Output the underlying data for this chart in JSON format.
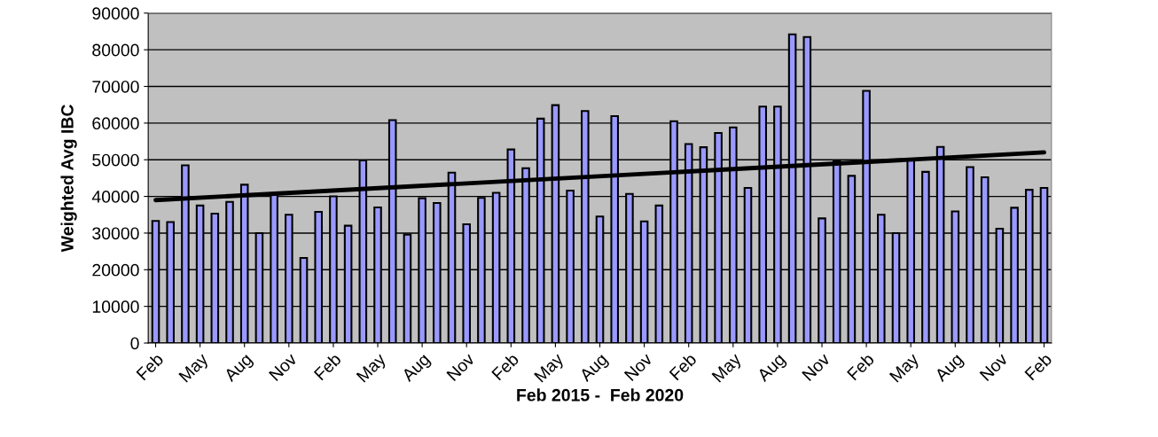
{
  "chart_data": {
    "type": "bar",
    "xlabel": "Feb 2015 -  Feb 2020",
    "ylabel": "Weighted Avg IBC",
    "categories": [
      "Feb",
      null,
      null,
      "May",
      null,
      null,
      "Aug",
      null,
      null,
      "Nov",
      null,
      null,
      "Feb",
      null,
      null,
      "May",
      null,
      null,
      "Aug",
      null,
      null,
      "Nov",
      null,
      null,
      "Feb",
      null,
      null,
      "May",
      null,
      null,
      "Aug",
      null,
      null,
      "Nov",
      null,
      null,
      "Feb",
      null,
      null,
      "May",
      null,
      null,
      "Aug",
      null,
      null,
      "Nov",
      null,
      null,
      "Feb",
      null,
      null,
      "May",
      null,
      null,
      "Aug",
      null,
      null,
      "Nov",
      null,
      null,
      "Feb"
    ],
    "series": [
      {
        "color": "#9999ff",
        "values": [
          33300,
          33000,
          48500,
          37500,
          35300,
          38500,
          43200,
          30000,
          40500,
          35000,
          23200,
          35800,
          40000,
          32000,
          49800,
          37000,
          60800,
          29600,
          39500,
          38200,
          46500,
          32400,
          39600,
          41000,
          52800,
          47700,
          61200,
          64900,
          41600,
          63300,
          34500,
          61900,
          40700,
          33200,
          37500,
          60500,
          54300,
          53400,
          57300,
          58800,
          42300,
          64500,
          64500,
          84200,
          83500,
          34000,
          49600,
          45600,
          68800,
          35000,
          30000,
          49800,
          46700,
          53500,
          35900,
          48000,
          45200,
          31200,
          36900,
          41800,
          42300
        ]
      },
      {
        "type": "line",
        "color": "#000000",
        "values": [
          39000,
          null,
          null,
          null,
          null,
          null,
          null,
          null,
          null,
          null,
          null,
          null,
          null,
          null,
          null,
          null,
          null,
          null,
          null,
          null,
          null,
          null,
          null,
          null,
          null,
          null,
          null,
          null,
          null,
          null,
          null,
          null,
          null,
          null,
          null,
          null,
          null,
          null,
          null,
          null,
          null,
          null,
          null,
          null,
          null,
          null,
          null,
          null,
          null,
          null,
          null,
          null,
          null,
          null,
          null,
          null,
          null,
          null,
          null,
          null,
          52000
        ]
      }
    ],
    "ylim": [
      0,
      90000
    ],
    "yticks": [
      0,
      10000,
      20000,
      30000,
      40000,
      50000,
      60000,
      70000,
      80000,
      90000
    ],
    "grid": "y"
  }
}
